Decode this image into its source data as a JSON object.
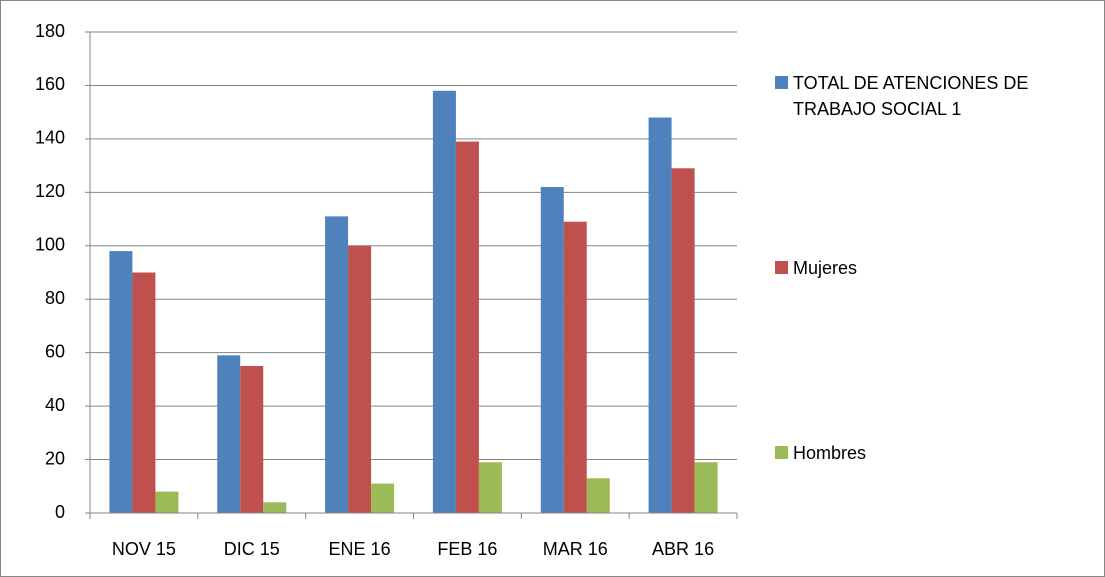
{
  "chart_data": {
    "type": "bar",
    "categories": [
      "NOV 15",
      "DIC 15",
      "ENE 16",
      "FEB 16",
      "MAR 16",
      "ABR 16"
    ],
    "series": [
      {
        "name": "TOTAL DE ATENCIONES DE TRABAJO SOCIAL 1",
        "color": "#4f81bd",
        "values": [
          98,
          59,
          111,
          158,
          122,
          148
        ]
      },
      {
        "name": "Mujeres",
        "color": "#c0504d",
        "values": [
          90,
          55,
          100,
          139,
          109,
          129
        ]
      },
      {
        "name": "Hombres",
        "color": "#9bbb59",
        "values": [
          8,
          4,
          11,
          19,
          13,
          19
        ]
      }
    ],
    "ylim": [
      0,
      180
    ],
    "yticks": [
      0,
      20,
      40,
      60,
      80,
      100,
      120,
      140,
      160,
      180
    ],
    "grid": true,
    "legend": "right"
  }
}
